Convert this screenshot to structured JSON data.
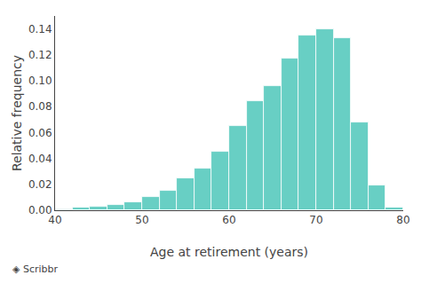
{
  "chart_data": {
    "type": "histogram",
    "xlabel": "Age at retirement (years)",
    "ylabel": "Relative frequency",
    "annotations": [
      "◈ Scribbr"
    ],
    "bins": [
      40,
      42,
      44,
      46,
      48,
      50,
      52,
      54,
      56,
      58,
      60,
      62,
      64,
      66,
      68,
      70,
      72,
      74,
      76,
      78,
      80
    ],
    "values": [
      0.001,
      0.002,
      0.003,
      0.004,
      0.006,
      0.01,
      0.015,
      0.025,
      0.032,
      0.045,
      0.065,
      0.084,
      0.096,
      0.117,
      0.135,
      0.14,
      0.133,
      0.068,
      0.019,
      0.002
    ],
    "color": "#68CFC4",
    "xlim": [
      40,
      80
    ],
    "ylim": [
      0,
      0.15
    ],
    "xticks": [
      40,
      50,
      60,
      70,
      80
    ],
    "yticks": [
      {
        "value": 0,
        "label": "0.00"
      },
      0.02,
      0.04,
      0.06,
      0.08,
      {
        "value": 0.1,
        "label": "0.10"
      },
      0.12,
      0.14
    ],
    "grid": false
  }
}
